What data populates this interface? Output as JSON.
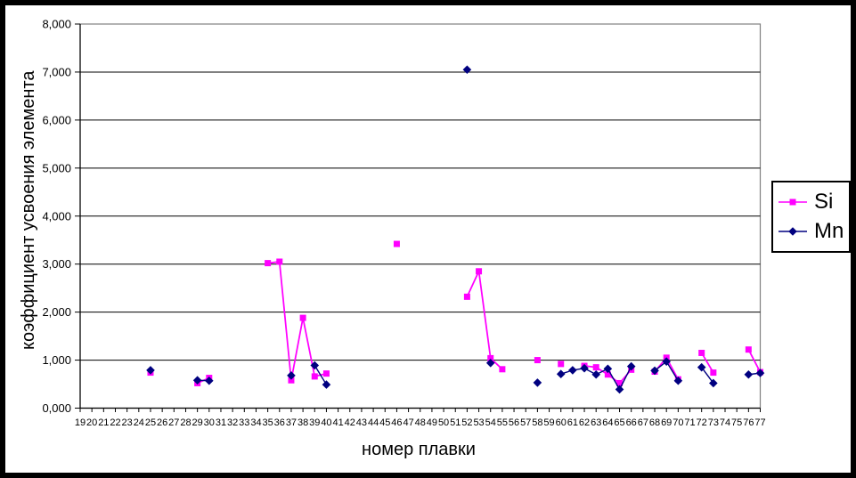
{
  "window": {
    "background": "#FFFFFF",
    "frame_color": "#000000"
  },
  "chart_data": {
    "type": "line",
    "title": "",
    "xlabel": "номер плавки",
    "ylabel": "коэффициент усвоения элемента",
    "x_categories": [
      19,
      20,
      21,
      22,
      23,
      24,
      25,
      26,
      27,
      28,
      29,
      30,
      31,
      32,
      33,
      34,
      35,
      36,
      37,
      38,
      39,
      40,
      41,
      42,
      43,
      44,
      45,
      46,
      47,
      48,
      49,
      50,
      51,
      52,
      53,
      54,
      55,
      56,
      57,
      58,
      59,
      60,
      61,
      62,
      63,
      64,
      65,
      66,
      67,
      68,
      69,
      70,
      71,
      72,
      73,
      74,
      75,
      76,
      77
    ],
    "ylim": [
      0,
      8
    ],
    "yticks": [
      {
        "value": 0,
        "label": "0,000"
      },
      {
        "value": 1,
        "label": "1,000"
      },
      {
        "value": 2,
        "label": "2,000"
      },
      {
        "value": 3,
        "label": "3,000"
      },
      {
        "value": 4,
        "label": "4,000"
      },
      {
        "value": 5,
        "label": "5,000"
      },
      {
        "value": 6,
        "label": "6,000"
      },
      {
        "value": 7,
        "label": "7,000"
      },
      {
        "value": 8,
        "label": "8,000"
      }
    ],
    "grid": "horizontal-major",
    "legend_position": "middle-right",
    "axis_color": "#000000",
    "gridline_color": "#000000",
    "plot_border_color": "#808080",
    "series": [
      {
        "name": "Si",
        "color": "#FF00FF",
        "marker": "square",
        "points": [
          [
            25,
            0.74
          ],
          [
            29,
            0.52
          ],
          [
            30,
            0.63
          ],
          [
            35,
            3.02
          ],
          [
            36,
            3.05
          ],
          [
            37,
            0.58
          ],
          [
            38,
            1.88
          ],
          [
            39,
            0.66
          ],
          [
            40,
            0.72
          ],
          [
            46,
            3.42
          ],
          [
            52,
            2.32
          ],
          [
            53,
            2.85
          ],
          [
            54,
            1.04
          ],
          [
            55,
            0.81
          ],
          [
            58,
            1.0
          ],
          [
            60,
            0.92
          ],
          [
            62,
            0.88
          ],
          [
            63,
            0.85
          ],
          [
            64,
            0.7
          ],
          [
            65,
            0.52
          ],
          [
            66,
            0.8
          ],
          [
            68,
            0.76
          ],
          [
            69,
            1.05
          ],
          [
            70,
            0.6
          ],
          [
            72,
            1.15
          ],
          [
            73,
            0.74
          ],
          [
            76,
            1.22
          ],
          [
            77,
            0.75
          ]
        ]
      },
      {
        "name": "Mn",
        "color": "#000080",
        "marker": "diamond",
        "points": [
          [
            25,
            0.79
          ],
          [
            29,
            0.58
          ],
          [
            30,
            0.57
          ],
          [
            37,
            0.68
          ],
          [
            39,
            0.89
          ],
          [
            40,
            0.49
          ],
          [
            52,
            7.05
          ],
          [
            54,
            0.94
          ],
          [
            58,
            0.53
          ],
          [
            60,
            0.71
          ],
          [
            61,
            0.79
          ],
          [
            62,
            0.83
          ],
          [
            63,
            0.7
          ],
          [
            64,
            0.82
          ],
          [
            65,
            0.39
          ],
          [
            66,
            0.87
          ],
          [
            68,
            0.78
          ],
          [
            69,
            0.97
          ],
          [
            70,
            0.57
          ],
          [
            72,
            0.85
          ],
          [
            73,
            0.52
          ],
          [
            76,
            0.7
          ],
          [
            77,
            0.73
          ]
        ]
      }
    ]
  }
}
